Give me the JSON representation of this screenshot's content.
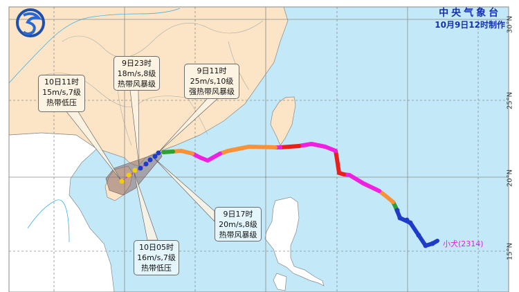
{
  "header": {
    "agency": "中央气象台",
    "issued": "10月9日12时制作",
    "logo": "cma-logo"
  },
  "axis": {
    "lat_labels": [
      "30°N",
      "25°N",
      "20°N",
      "15°N"
    ]
  },
  "storm": {
    "name": "小犬(2314)",
    "name_color": "#e020e0"
  },
  "callouts": [
    {
      "time": "10日11时",
      "wind": "15m/s,7级",
      "category": "热带低压"
    },
    {
      "time": "9日23时",
      "wind": "18m/s,8级",
      "category": "热带风暴级"
    },
    {
      "time": "9日11时",
      "wind": "25m/s,10级",
      "category": "强热带风暴级"
    },
    {
      "time": "9日17时",
      "wind": "20m/s,8级",
      "category": "热带风暴级"
    },
    {
      "time": "10日05时",
      "wind": "16m/s,7级",
      "category": "热带低压"
    }
  ],
  "colors": {
    "sea": "#c3e9f8",
    "china_land": "#fbe5c6",
    "other_land": "#ffffff",
    "forecast_cone": "#8a6a6a",
    "tropical_depression": "#f0d000",
    "tropical_storm": "#1e3cc8",
    "severe_tropical_storm": "#30a030",
    "typhoon": "#f7913a",
    "severe_typhoon": "#f020e0",
    "super_typhoon": "#e8201c",
    "title": "#1430b4"
  }
}
